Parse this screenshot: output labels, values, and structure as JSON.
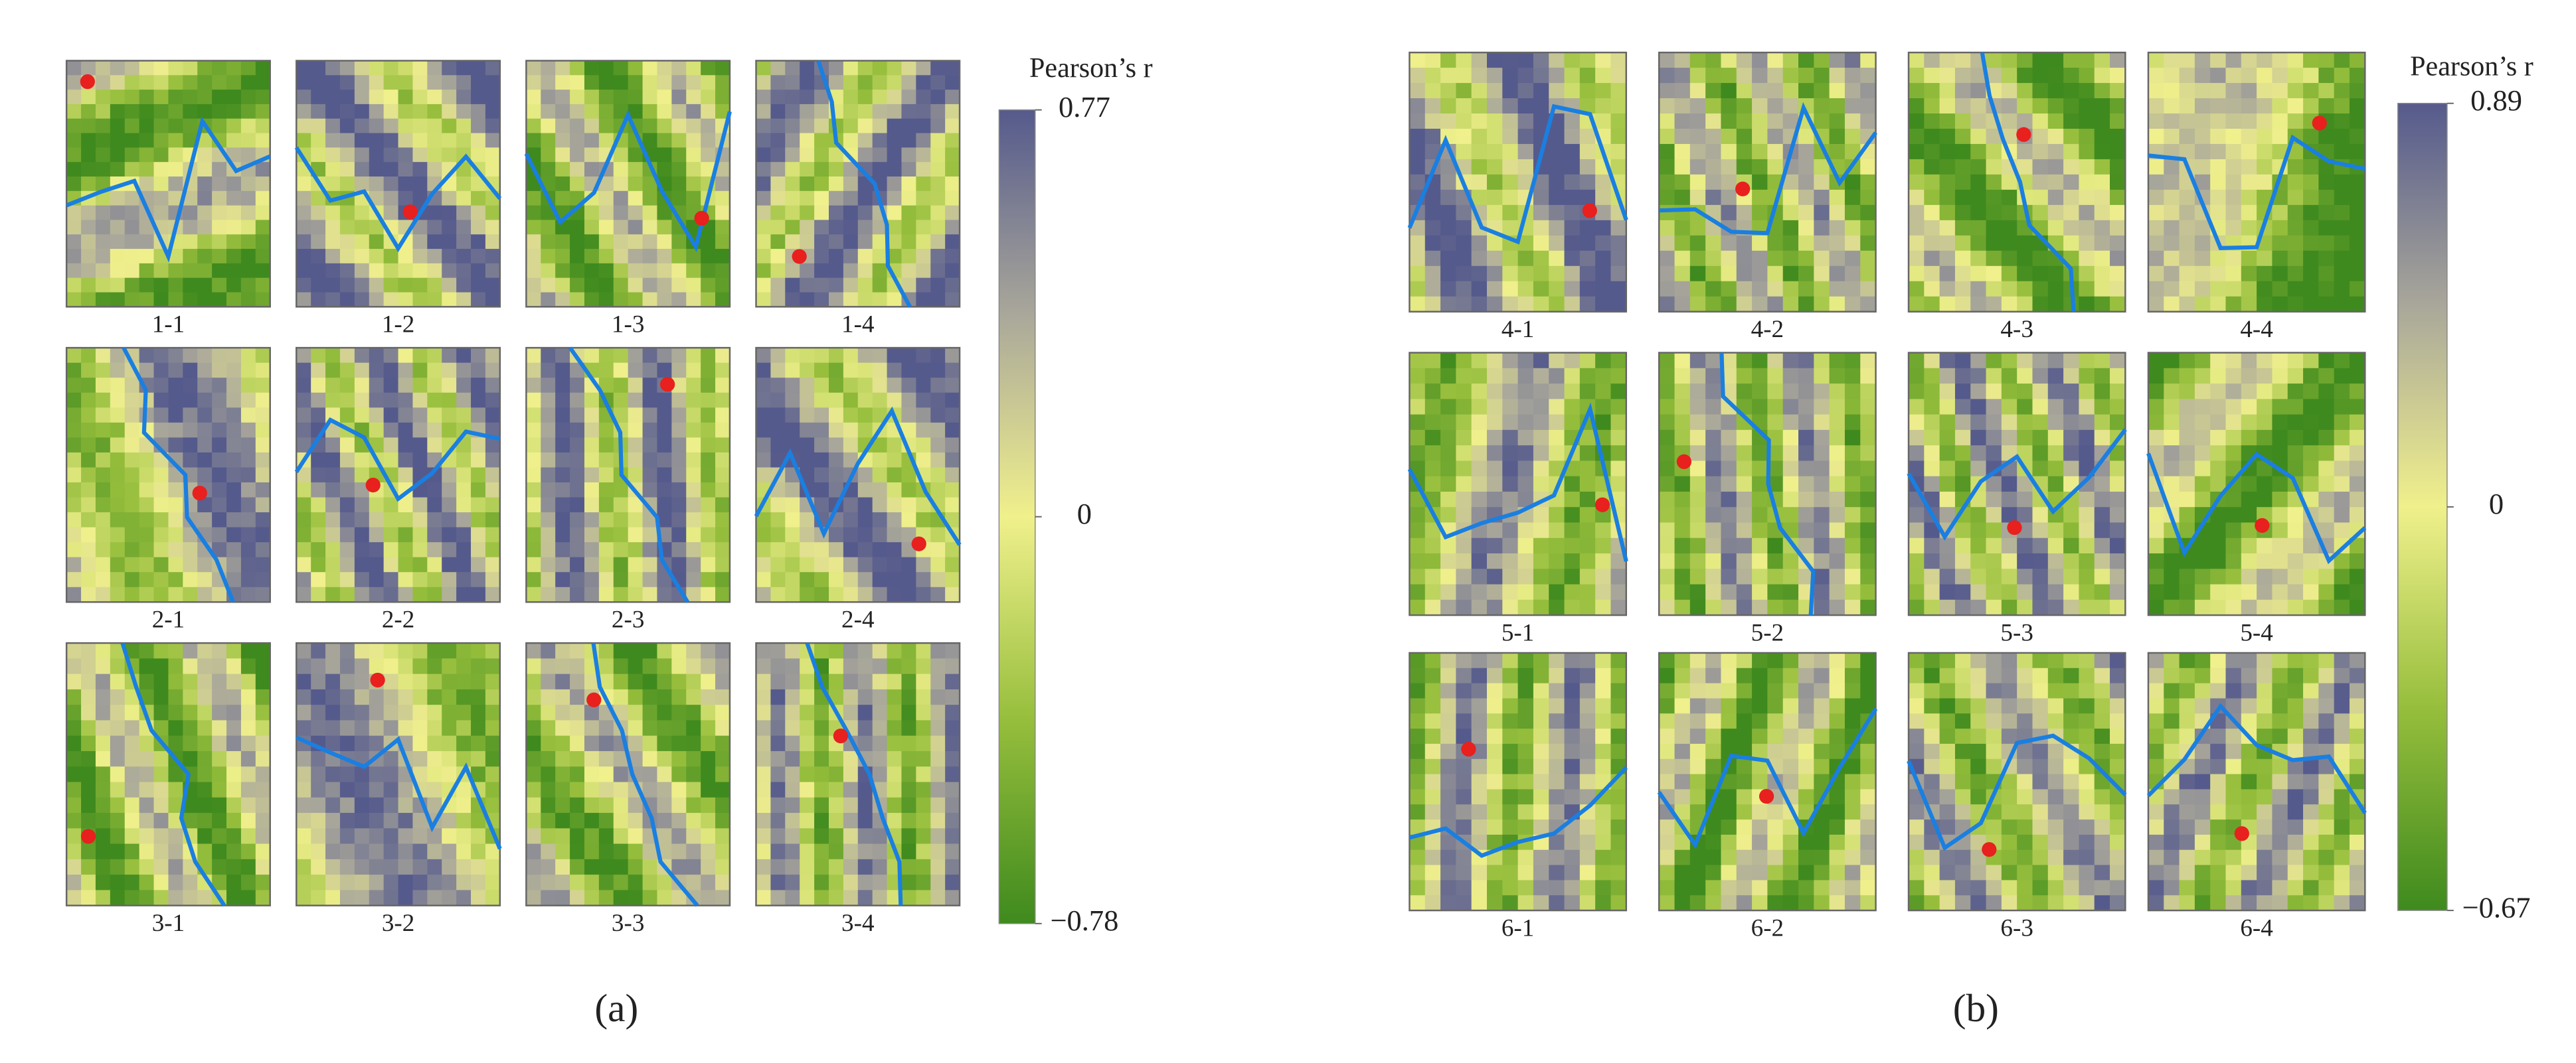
{
  "panels": [
    {
      "label": "(a)",
      "colorbar": {
        "title": "Pearson’s r",
        "lim": [
          -0.78,
          0.77
        ],
        "ticks": [
          0.77,
          0,
          {
            "value": -0.78,
            "label": "−0.78"
          }
        ]
      },
      "tiles": [
        "1-1",
        "1-2",
        "1-3",
        "1-4",
        "2-1",
        "2-2",
        "2-3",
        "2-4",
        "3-1",
        "3-2",
        "3-3",
        "3-4"
      ]
    },
    {
      "label": "(b)",
      "colorbar": {
        "title": "Pearson’s r",
        "lim": [
          -0.67,
          0.89
        ],
        "ticks": [
          0.89,
          0,
          {
            "value": -0.67,
            "label": "−0.67"
          }
        ]
      },
      "tiles": [
        "4-1",
        "4-2",
        "4-3",
        "4-4",
        "5-1",
        "5-2",
        "5-3",
        "5-4",
        "6-1",
        "6-2",
        "6-3",
        "6-4"
      ]
    }
  ]
}
